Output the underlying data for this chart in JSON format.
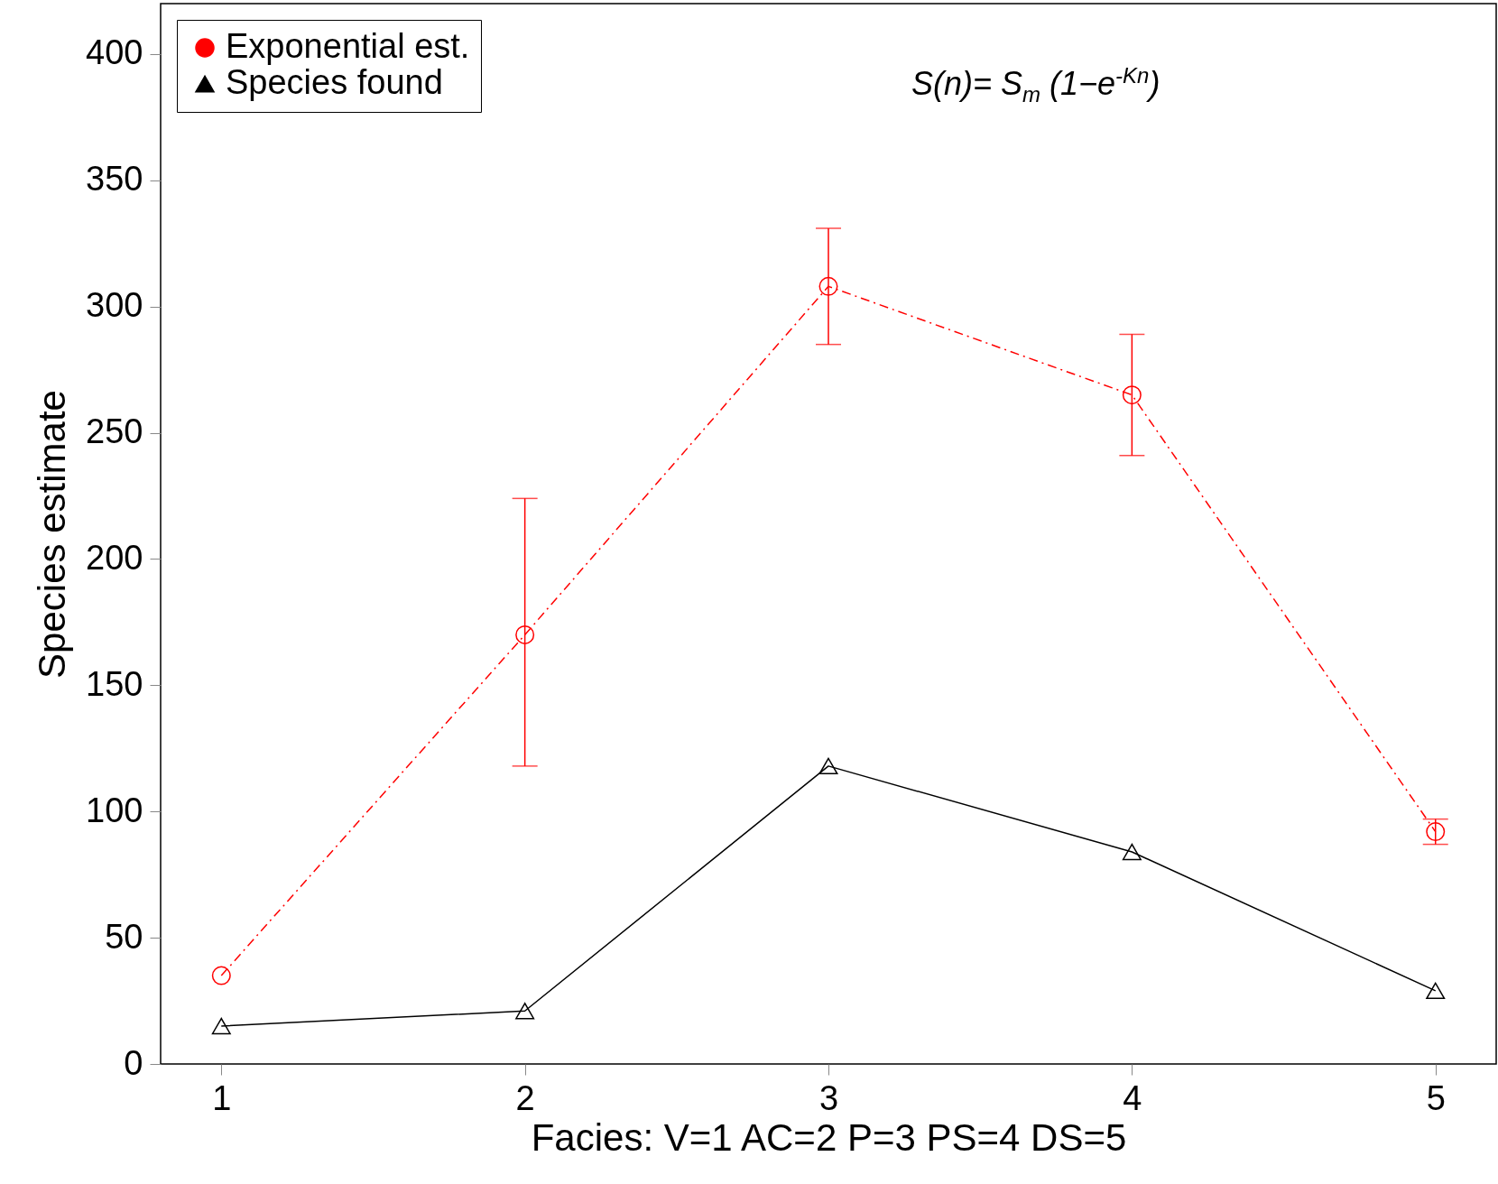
{
  "chart_data": {
    "type": "line",
    "xlabel": "Facies: V=1 AC=2 P=3 PS=4 DS=5",
    "ylabel": "Species estimate",
    "x": [
      1,
      2,
      3,
      4,
      5
    ],
    "series": [
      {
        "name": "Exponential est.",
        "color": "#ff0000",
        "values": [
          35,
          170,
          308,
          265,
          92
        ],
        "errors": [
          null,
          [
            118,
            224
          ],
          [
            285,
            331
          ],
          [
            241,
            289
          ],
          [
            87,
            97
          ]
        ],
        "marker": "circle",
        "line_style": "dashed"
      },
      {
        "name": "Species found",
        "color": "#000000",
        "values": [
          15,
          21,
          118,
          84,
          29
        ],
        "marker": "triangle",
        "line_style": "solid"
      }
    ],
    "xlim": [
      0.8,
      5.2
    ],
    "xticks": [
      1,
      2,
      3,
      4,
      5
    ],
    "ylim": [
      0,
      420
    ],
    "yticks": [
      0,
      50,
      100,
      150,
      200,
      250,
      300,
      350,
      400
    ],
    "grid": false,
    "legend": "top left",
    "annotations": [
      "S(n)= S$_{m}$ (1−e$^{-Kn}$)"
    ]
  }
}
